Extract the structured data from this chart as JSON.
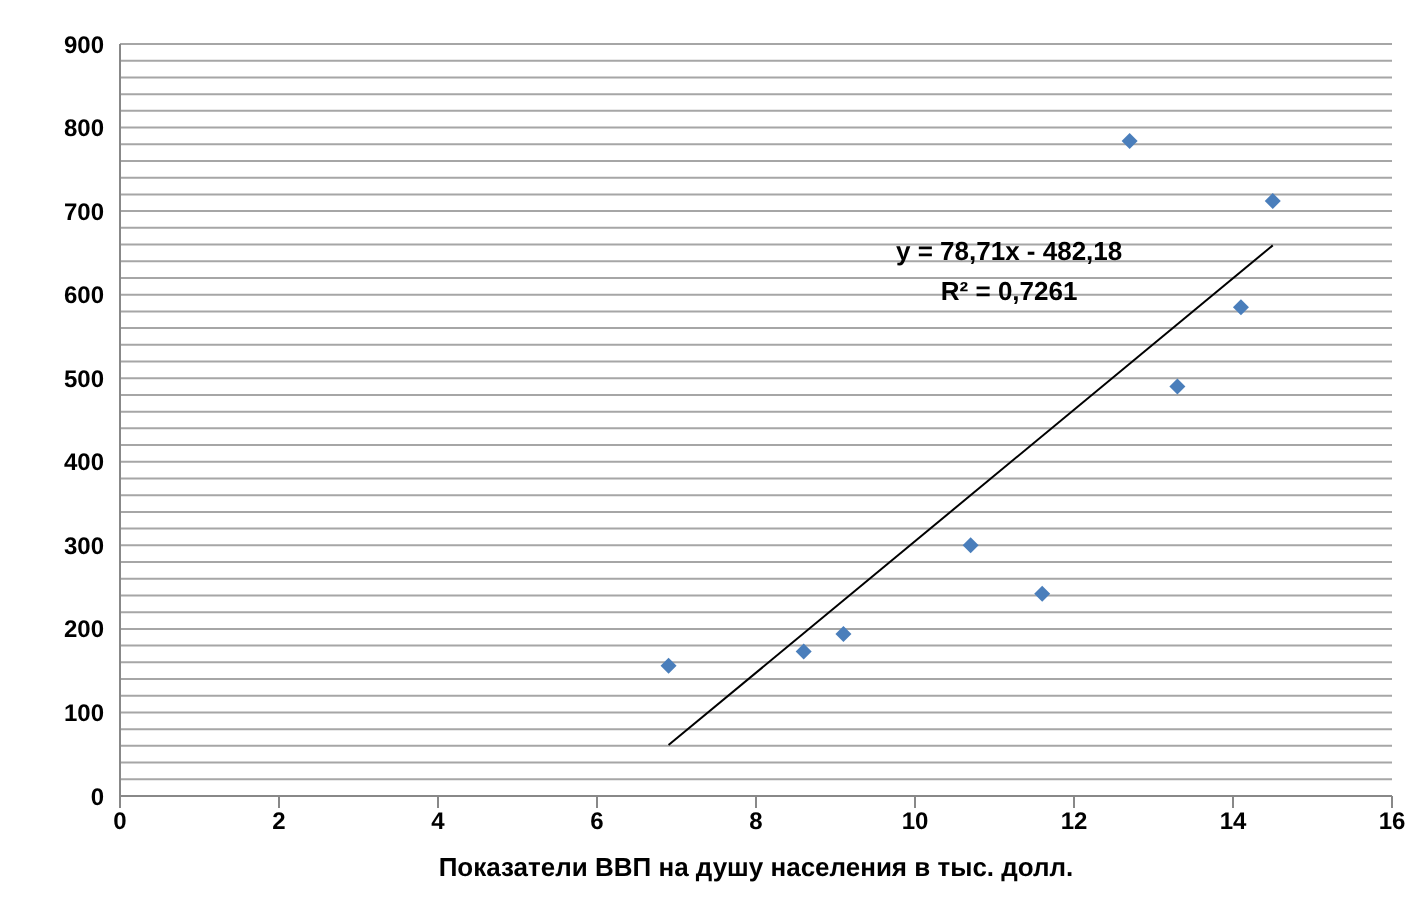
{
  "chart_data": {
    "type": "scatter",
    "xlabel": "Показатели ВВП на душу населения в тыс. долл.",
    "series": [
      {
        "color": "#4a7ebb",
        "x": [
          6.9,
          8.6,
          9.1,
          10.7,
          11.6,
          12.7,
          13.3,
          14.1,
          14.5
        ],
        "values": [
          156,
          173,
          194,
          300,
          242,
          784,
          490,
          585,
          712
        ],
        "marker": "diamond"
      },
      {
        "type": "line",
        "color": "#000000",
        "x": [
          6.9,
          14.5
        ],
        "values": [
          61,
          659
        ],
        "marker": "none",
        "line_style": "solid"
      }
    ],
    "annotations": [
      "y = 78,71x - 482,18",
      "R² = 0,7261"
    ],
    "xlim": [
      0,
      16
    ],
    "xticks": [
      0,
      2,
      4,
      6,
      8,
      10,
      12,
      14,
      16
    ],
    "ylim": [
      0,
      900
    ],
    "yticks": [
      0,
      {
        "value": 20,
        "label": null
      },
      {
        "value": 40,
        "label": null
      },
      {
        "value": 60,
        "label": null
      },
      {
        "value": 80,
        "label": null
      },
      100,
      {
        "value": 120,
        "label": null
      },
      {
        "value": 140,
        "label": null
      },
      {
        "value": 160,
        "label": null
      },
      {
        "value": 180,
        "label": null
      },
      200,
      {
        "value": 220,
        "label": null
      },
      {
        "value": 240,
        "label": null
      },
      {
        "value": 260,
        "label": null
      },
      {
        "value": 280,
        "label": null
      },
      300,
      {
        "value": 320,
        "label": null
      },
      {
        "value": 340,
        "label": null
      },
      {
        "value": 360,
        "label": null
      },
      {
        "value": 380,
        "label": null
      },
      400,
      {
        "value": 420,
        "label": null
      },
      {
        "value": 440,
        "label": null
      },
      {
        "value": 460,
        "label": null
      },
      {
        "value": 480,
        "label": null
      },
      500,
      {
        "value": 520,
        "label": null
      },
      {
        "value": 540,
        "label": null
      },
      {
        "value": 560,
        "label": null
      },
      {
        "value": 580,
        "label": null
      },
      600,
      {
        "value": 620,
        "label": null
      },
      {
        "value": 640,
        "label": null
      },
      {
        "value": 660,
        "label": null
      },
      {
        "value": 680,
        "label": null
      },
      700,
      {
        "value": 720,
        "label": null
      },
      {
        "value": 740,
        "label": null
      },
      {
        "value": 760,
        "label": null
      },
      {
        "value": 780,
        "label": null
      },
      800,
      {
        "value": 820,
        "label": null
      },
      {
        "value": 840,
        "label": null
      },
      {
        "value": 860,
        "label": null
      },
      {
        "value": 880,
        "label": null
      },
      900
    ],
    "grid": "y",
    "legend": false
  }
}
